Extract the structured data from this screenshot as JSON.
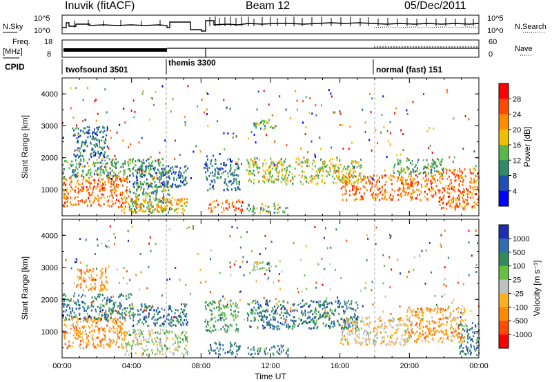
{
  "header": {
    "station": "Inuvik (fitACF)",
    "beam": "Beam 12",
    "date": "05/Dec/2011"
  },
  "top_panels": {
    "nsky_label": "N.Sky",
    "nsky_ticks": [
      "10^5",
      "10^0"
    ],
    "nsearch_label": "N.Search",
    "nsearch_ticks": [
      "10^5",
      "10^0"
    ],
    "freq_label": "Freq.",
    "freq_unit": "[MHz]",
    "freq_ticks": [
      "18",
      "8"
    ],
    "nave_label": "Nave",
    "nave_ticks": [
      "60",
      "0"
    ],
    "cpid_label": "CPID",
    "cpid_modes": [
      {
        "name": "twofsound 3501",
        "start_hr": 0
      },
      {
        "name": "themis 3300",
        "start_hr": 6
      },
      {
        "name": "normal (fast) 151",
        "start_hr": 18
      }
    ]
  },
  "colors": {
    "power_scale": [
      "#0000ff",
      "#1f4fb0",
      "#2e8a68",
      "#59b84a",
      "#f0c000",
      "#ff8c00",
      "#ff4a00",
      "#ff0000"
    ],
    "velocity_scale": [
      "#1d2fb0",
      "#2f6fb0",
      "#2f8a5c",
      "#66c040",
      "#c0c0c0",
      "#ffb020",
      "#ff8a00",
      "#ff4a00",
      "#ff0000"
    ]
  },
  "chart_data": [
    {
      "type": "heatmap",
      "name": "power",
      "ylabel": "Slant Range [km]",
      "yticks": [
        "1000",
        "2000",
        "3000",
        "4000"
      ],
      "ylim": [
        180,
        4500
      ],
      "xlim": [
        0,
        24
      ],
      "colorbar_label": "Power [dB]",
      "colorbar_ticks": [
        "4",
        "8",
        "12",
        "16",
        "20",
        "24",
        "28"
      ],
      "colorbar_range": [
        0,
        32
      ],
      "regions": [
        {
          "t0": 0.0,
          "t1": 3.8,
          "r0": 500,
          "r1": 1500,
          "value": 26
        },
        {
          "t0": 0.0,
          "t1": 6.0,
          "r0": 1400,
          "r1": 2000,
          "value": 13
        },
        {
          "t0": 0.6,
          "t1": 2.6,
          "r0": 2000,
          "r1": 3000,
          "value": 8
        },
        {
          "t0": 3.8,
          "t1": 6.2,
          "r0": 300,
          "r1": 1300,
          "value": 14
        },
        {
          "t0": 3.2,
          "t1": 7.2,
          "r0": 300,
          "r1": 800,
          "value": 22
        },
        {
          "t0": 4.0,
          "t1": 7.2,
          "r0": 1100,
          "r1": 1800,
          "value": 11
        },
        {
          "t0": 8.4,
          "t1": 10.4,
          "r0": 300,
          "r1": 700,
          "value": 24
        },
        {
          "t0": 8.2,
          "t1": 10.2,
          "r0": 1000,
          "r1": 2000,
          "value": 8
        },
        {
          "t0": 10.6,
          "t1": 17.2,
          "r0": 1200,
          "r1": 2000,
          "value": 19
        },
        {
          "t0": 11.0,
          "t1": 12.4,
          "r0": 2900,
          "r1": 3200,
          "value": 13
        },
        {
          "t0": 10.6,
          "t1": 13.0,
          "r0": 300,
          "r1": 600,
          "value": 14
        },
        {
          "t0": 16.0,
          "t1": 21.6,
          "r0": 700,
          "r1": 1500,
          "value": 27
        },
        {
          "t0": 21.6,
          "t1": 24.0,
          "r0": 400,
          "r1": 1700,
          "value": 27
        },
        {
          "t0": 19.0,
          "t1": 22.0,
          "r0": 1500,
          "r1": 2000,
          "value": 15
        }
      ]
    },
    {
      "type": "heatmap",
      "name": "velocity",
      "ylabel": "Slant Range [km]",
      "yticks": [
        "1000",
        "2000",
        "3000",
        "4000"
      ],
      "ylim": [
        180,
        4500
      ],
      "xlim": [
        0,
        24
      ],
      "xlabel": "Time UT",
      "xticks": [
        "00:00",
        "04:00",
        "08:00",
        "12:00",
        "16:00",
        "20:00",
        "00:00"
      ],
      "colorbar_label": "Velocity [m s⁻¹]",
      "colorbar_ticks": [
        "1000",
        "500",
        "100",
        "25",
        "-25",
        "-100",
        "-500",
        "-1000"
      ],
      "regions": [
        {
          "t0": 0.0,
          "t1": 3.6,
          "r0": 500,
          "r1": 1500,
          "value": -300
        },
        {
          "t0": 0.0,
          "t1": 4.0,
          "r0": 1400,
          "r1": 2200,
          "value": 120
        },
        {
          "t0": 0.8,
          "t1": 2.6,
          "r0": 2300,
          "r1": 3000,
          "value": -150
        },
        {
          "t0": 3.6,
          "t1": 7.2,
          "r0": 300,
          "r1": 1100,
          "value": 0
        },
        {
          "t0": 4.0,
          "t1": 7.2,
          "r0": 1200,
          "r1": 1900,
          "value": 200
        },
        {
          "t0": 8.4,
          "t1": 10.2,
          "r0": 300,
          "r1": 700,
          "value": 150
        },
        {
          "t0": 8.2,
          "t1": 10.2,
          "r0": 1000,
          "r1": 2000,
          "value": 80
        },
        {
          "t0": 10.6,
          "t1": 17.0,
          "r0": 1100,
          "r1": 2000,
          "value": 250
        },
        {
          "t0": 11.0,
          "t1": 12.4,
          "r0": 2900,
          "r1": 3200,
          "value": 0
        },
        {
          "t0": 10.6,
          "t1": 13.0,
          "r0": 300,
          "r1": 600,
          "value": 150
        },
        {
          "t0": 16.0,
          "t1": 20.0,
          "r0": 600,
          "r1": 1500,
          "value": -60
        },
        {
          "t0": 19.8,
          "t1": 23.2,
          "r0": 700,
          "r1": 1800,
          "value": -400
        },
        {
          "t0": 22.8,
          "t1": 24.0,
          "r0": 300,
          "r1": 1300,
          "value": 200
        }
      ]
    }
  ]
}
